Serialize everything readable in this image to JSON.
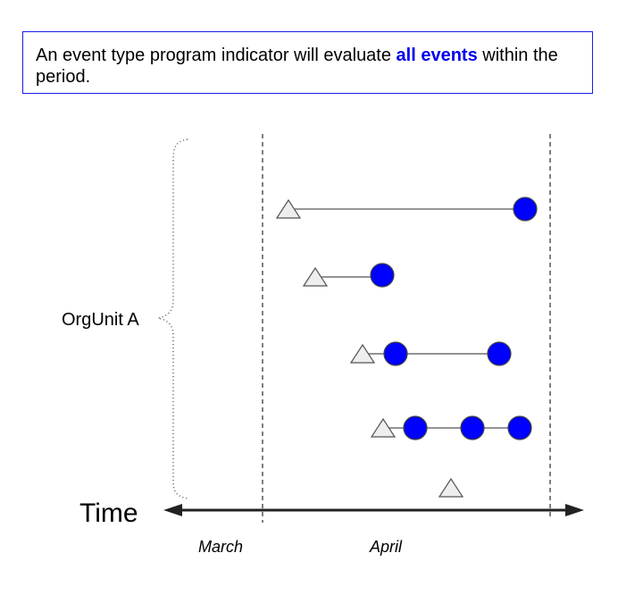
{
  "note": {
    "text_before": "An event type program indicator will evaluate ",
    "highlight": "all events",
    "text_after": " within the period."
  },
  "diagram": {
    "group_label": "OrgUnit A",
    "time_label": "Time",
    "months": [
      "March",
      "April"
    ],
    "colors": {
      "event": "#0000ff",
      "enrollment": "#eeeeee",
      "note_border": "#1a1aee",
      "highlight": "#0000ee"
    },
    "icons": [
      "triangle-enrollment-icon",
      "circle-event-icon",
      "arrow-axis-icon",
      "brace-icon"
    ]
  }
}
